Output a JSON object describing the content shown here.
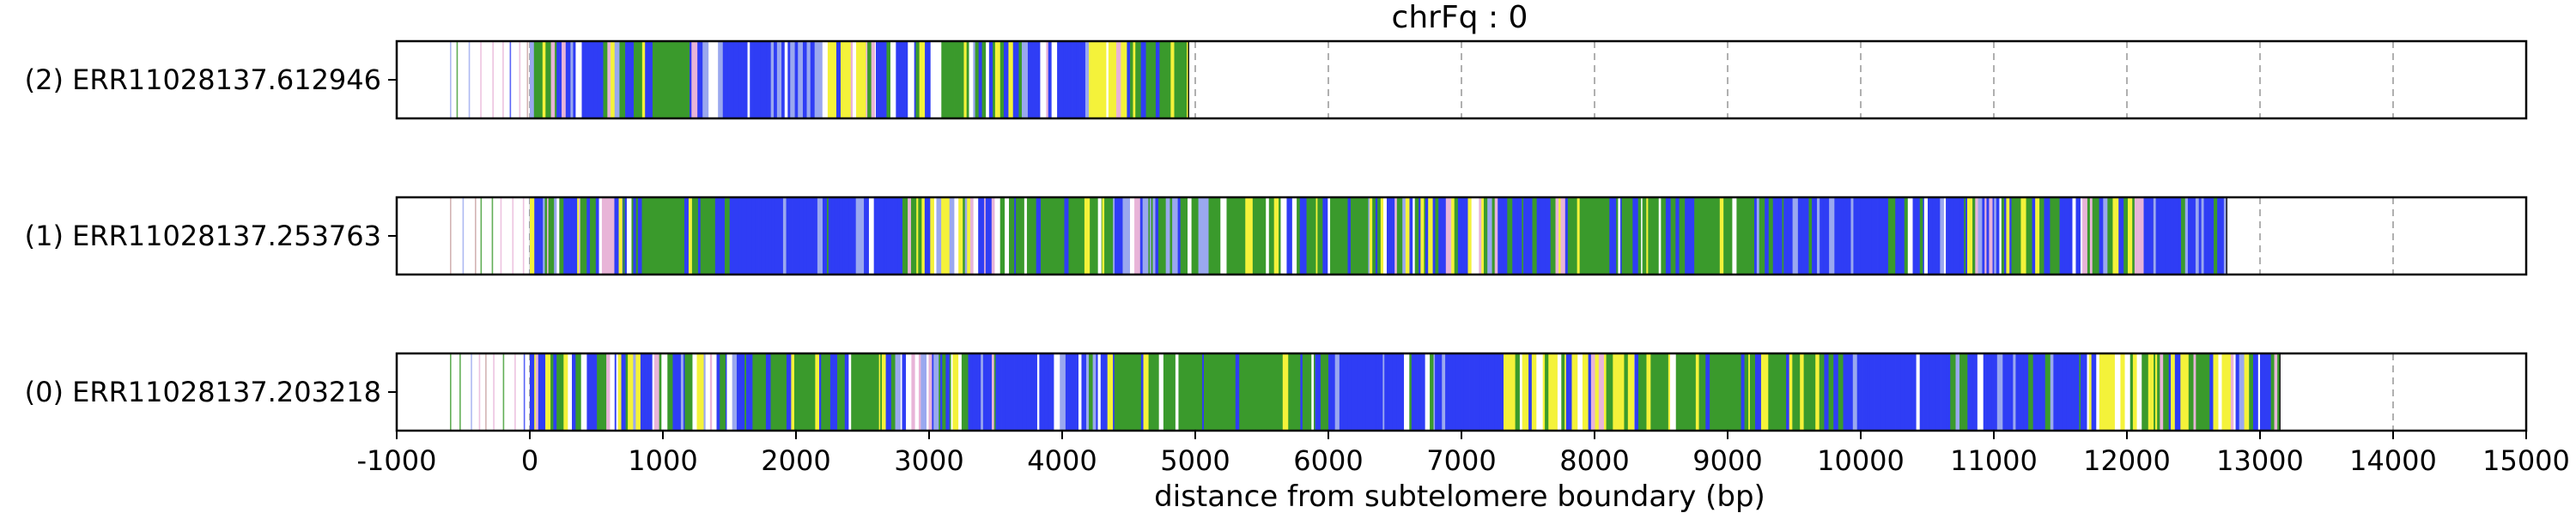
{
  "chart_data": {
    "type": "bar",
    "title": "chrFq : 0",
    "xlabel": "distance from subtelomere boundary (bp)",
    "ylabel": "",
    "xlim": [
      -1000,
      15000
    ],
    "xticks": [
      -1000,
      0,
      1000,
      2000,
      3000,
      4000,
      5000,
      6000,
      7000,
      8000,
      9000,
      10000,
      11000,
      12000,
      13000,
      14000,
      15000
    ],
    "grid": true,
    "colors": {
      "blue": "#2f3df5",
      "green": "#3a9a2c",
      "yellow": "#f4f23a",
      "light_blue": "#9aa8ef",
      "pink": "#e8b4d8",
      "white": "#ffffff",
      "grid": "#b0b0b0"
    },
    "reads": [
      {
        "label": "(2) ERR11028137.612946",
        "read_start": -1000,
        "dense_start": 0,
        "read_end": 4950,
        "segments": [
          {
            "start": 0,
            "end": 900,
            "color": "mixed"
          },
          {
            "start": 900,
            "end": 1200,
            "color": "green"
          },
          {
            "start": 1200,
            "end": 1450,
            "color": "mixed"
          },
          {
            "start": 1450,
            "end": 2200,
            "color": "blue"
          },
          {
            "start": 2200,
            "end": 2600,
            "color": "yellow"
          },
          {
            "start": 2600,
            "end": 2900,
            "color": "mixed"
          },
          {
            "start": 2900,
            "end": 3300,
            "color": "green"
          },
          {
            "start": 3300,
            "end": 3900,
            "color": "mixed"
          },
          {
            "start": 3900,
            "end": 4200,
            "color": "blue"
          },
          {
            "start": 4200,
            "end": 4550,
            "color": "yellow"
          },
          {
            "start": 4550,
            "end": 4950,
            "color": "green"
          }
        ]
      },
      {
        "label": "(1) ERR11028137.253763",
        "read_start": -1000,
        "dense_start": 0,
        "read_end": 12750,
        "segments": [
          {
            "start": 0,
            "end": 700,
            "color": "mixed"
          },
          {
            "start": 700,
            "end": 1400,
            "color": "green"
          },
          {
            "start": 1400,
            "end": 2800,
            "color": "blue"
          },
          {
            "start": 2800,
            "end": 3600,
            "color": "mixed"
          },
          {
            "start": 3600,
            "end": 4300,
            "color": "green"
          },
          {
            "start": 4300,
            "end": 5100,
            "color": "mixed"
          },
          {
            "start": 5100,
            "end": 6300,
            "color": "green"
          },
          {
            "start": 6300,
            "end": 7800,
            "color": "mixed"
          },
          {
            "start": 7800,
            "end": 9200,
            "color": "green"
          },
          {
            "start": 9200,
            "end": 10800,
            "color": "blue"
          },
          {
            "start": 10800,
            "end": 12200,
            "color": "mixed"
          },
          {
            "start": 12200,
            "end": 12750,
            "color": "blue"
          }
        ]
      },
      {
        "label": "(0) ERR11028137.203218",
        "read_start": -1000,
        "dense_start": 0,
        "read_end": 13150,
        "segments": [
          {
            "start": 0,
            "end": 1700,
            "color": "mixed"
          },
          {
            "start": 1700,
            "end": 2700,
            "color": "green"
          },
          {
            "start": 2700,
            "end": 3500,
            "color": "mixed"
          },
          {
            "start": 3500,
            "end": 4300,
            "color": "blue"
          },
          {
            "start": 4300,
            "end": 6000,
            "color": "green"
          },
          {
            "start": 6000,
            "end": 7300,
            "color": "blue"
          },
          {
            "start": 7300,
            "end": 8300,
            "color": "yellow"
          },
          {
            "start": 8300,
            "end": 9800,
            "color": "green"
          },
          {
            "start": 9800,
            "end": 11700,
            "color": "blue"
          },
          {
            "start": 11700,
            "end": 12500,
            "color": "yellow"
          },
          {
            "start": 12500,
            "end": 13150,
            "color": "mixed"
          }
        ]
      }
    ]
  }
}
